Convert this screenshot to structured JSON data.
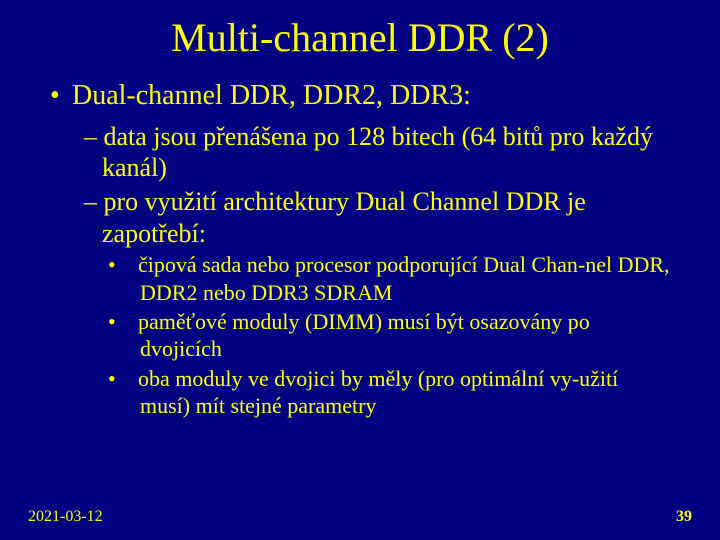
{
  "title": "Multi-channel DDR (2)",
  "bullets": {
    "l1": "Dual-channel DDR, DDR2, DDR3:",
    "l2a": "– data jsou přenášena po 128 bitech (64 bitů pro každý kanál)",
    "l2b": "– pro využití architektury Dual Channel DDR je zapotřebí:",
    "l3a": "čipová sada nebo procesor podporující Dual Chan-nel DDR, DDR2 nebo DDR3 SDRAM",
    "l3b": "paměťové moduly (DIMM) musí být osazovány po dvojicích",
    "l3c": "oba moduly ve dvojici by měly (pro optimální vy-užití musí) mít stejné parametry"
  },
  "footer": {
    "date": "2021-03-12",
    "page": "39"
  },
  "colors": {
    "background": "#000080",
    "text": "#ffff00"
  }
}
